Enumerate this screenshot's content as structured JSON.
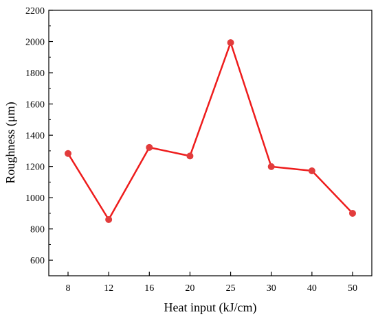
{
  "chart_data": {
    "type": "line",
    "title": "",
    "xlabel": "Heat input (kJ/cm)",
    "ylabel": "Roughness (μm)",
    "categories": [
      "8",
      "12",
      "16",
      "20",
      "25",
      "30",
      "40",
      "50"
    ],
    "series": [
      {
        "values": [
          1283,
          860,
          1322,
          1267,
          1993,
          1199,
          1172,
          900
        ]
      }
    ],
    "ylim": [
      500,
      2200
    ],
    "yticks": [
      600,
      800,
      1000,
      1200,
      1400,
      1600,
      1800,
      2000,
      2200
    ],
    "grid": false,
    "legend": "none",
    "line_color": "#ee1c1c",
    "marker_color": "#e23c3c"
  }
}
